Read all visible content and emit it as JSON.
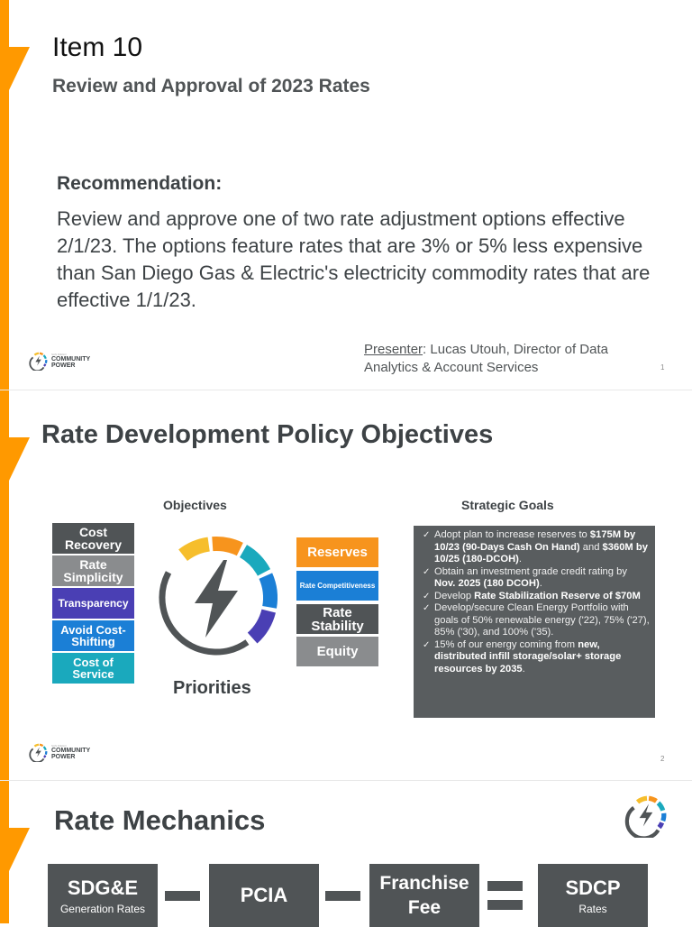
{
  "colors": {
    "accent": "#ff9900",
    "dark": "#505456",
    "gray": "#8a8c8e",
    "purple": "#4a3fb4",
    "blue": "#1b7fd6",
    "teal": "#1aa9bd",
    "orange": "#f7941d",
    "yellow": "#f6be2c"
  },
  "logo": {
    "small_text": "SAN DIEGO",
    "line1": "COMMUNITY",
    "line2": "POWER"
  },
  "slide1": {
    "title": "Item 10",
    "subtitle": "Review and Approval of 2023 Rates",
    "rec_heading": "Recommendation:",
    "rec_body": "Review and approve one of two rate adjustment options effective 2/1/23. The options feature rates that are 3% or 5% less expensive than San Diego Gas & Electric's electricity commodity rates that are effective 1/1/23.",
    "presenter_label": "Presenter",
    "presenter_text": ": Lucas Utouh, Director of Data Analytics & Account Services",
    "page": "1"
  },
  "slide2": {
    "title": "Rate Development Policy Objectives",
    "objectives_heading": "Objectives",
    "priorities_label": "Priorities",
    "objectives": [
      "Cost Recovery",
      "Rate Simplicity",
      "Transparency",
      "Avoid Cost-Shifting",
      "Cost of Service"
    ],
    "priorities": [
      "Reserves",
      "Rate Competitiveness",
      "Rate Stability",
      "Equity"
    ],
    "goals_heading": "Strategic Goals",
    "goals": [
      {
        "parts": [
          [
            "Adopt plan to increase reserves to ",
            false
          ],
          [
            "$175M by 10/23 (90-Days Cash On Hand)",
            true
          ],
          [
            " and ",
            false
          ],
          [
            "$360M by 10/25 (180-DCOH)",
            true
          ],
          [
            ".",
            false
          ]
        ]
      },
      {
        "parts": [
          [
            "Obtain an investment grade credit rating by ",
            false
          ],
          [
            "Nov. 2025 (180 DCOH)",
            true
          ],
          [
            ".",
            false
          ]
        ]
      },
      {
        "parts": [
          [
            "Develop ",
            false
          ],
          [
            "Rate Stabilization Reserve of $70M",
            true
          ]
        ]
      },
      {
        "parts": [
          [
            "Develop/secure Clean Energy Portfolio with goals of 50% renewable energy ('22), 75% ('27), 85% ('30), and 100% ('35).",
            false
          ]
        ]
      },
      {
        "parts": [
          [
            "15% of our energy coming from ",
            false
          ],
          [
            "new, distributed infill storage/solar+ storage resources by 2035",
            true
          ],
          [
            ".",
            false
          ]
        ]
      }
    ],
    "page": "2"
  },
  "slide3": {
    "title": "Rate Mechanics",
    "boxes": [
      {
        "main": "SDG&E",
        "sub": "Generation Rates"
      },
      {
        "main": "PCIA",
        "sub": ""
      },
      {
        "main": "Franchise Fee",
        "sub": ""
      },
      {
        "main": "SDCP",
        "sub": "Rates"
      }
    ],
    "operators": [
      "minus",
      "minus",
      "equals"
    ]
  }
}
